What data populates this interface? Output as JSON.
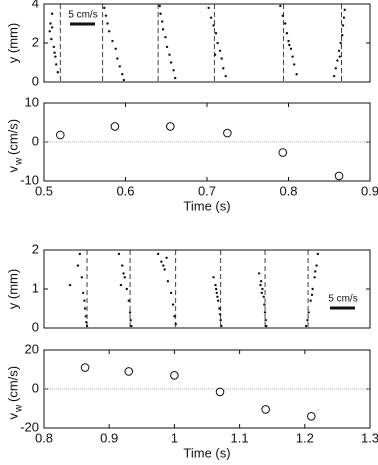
{
  "chart_data": [
    {
      "type": "profile",
      "ylabel": "y (mm)",
      "xlim": [
        0.5,
        0.9
      ],
      "ylim": [
        0,
        4
      ],
      "yticks": [
        0,
        2,
        4
      ],
      "scale_label": "5 cm/s",
      "color": "#111111",
      "series": [
        {
          "line": 0.52,
          "x": [
            0.51,
            0.508,
            0.507,
            0.509,
            0.512,
            0.514,
            0.515,
            0.517,
            0.51,
            0.513
          ],
          "y": [
            3.5,
            3.0,
            2.6,
            2.2,
            1.8,
            1.3,
            0.9,
            0.5,
            2.8,
            1.5
          ]
        },
        {
          "line": 0.572,
          "x": [
            0.574,
            0.576,
            0.578,
            0.58,
            0.584,
            0.588,
            0.59,
            0.593,
            0.596,
            0.598
          ],
          "y": [
            3.8,
            3.4,
            3.0,
            2.6,
            2.1,
            1.7,
            1.2,
            0.8,
            0.4,
            0.1
          ]
        },
        {
          "line": 0.64,
          "x": [
            0.642,
            0.643,
            0.645,
            0.646,
            0.649,
            0.651,
            0.654,
            0.656,
            0.659,
            0.661
          ],
          "y": [
            3.9,
            3.5,
            3.1,
            2.7,
            2.3,
            1.8,
            1.4,
            1.0,
            0.6,
            0.2
          ]
        },
        {
          "line": 0.709,
          "x": [
            0.702,
            0.705,
            0.708,
            0.711,
            0.713,
            0.716,
            0.718,
            0.72,
            0.723,
            0.71
          ],
          "y": [
            3.8,
            3.3,
            2.9,
            2.5,
            2.0,
            1.6,
            1.2,
            0.7,
            0.3,
            1.4
          ]
        },
        {
          "line": 0.794,
          "x": [
            0.79,
            0.793,
            0.796,
            0.798,
            0.8,
            0.803,
            0.805,
            0.807,
            0.81,
            0.801
          ],
          "y": [
            3.9,
            3.4,
            3.0,
            2.5,
            2.1,
            1.7,
            1.3,
            0.9,
            0.4,
            1.9
          ]
        },
        {
          "line": 0.865,
          "x": [
            0.869,
            0.868,
            0.867,
            0.866,
            0.864,
            0.862,
            0.86,
            0.858,
            0.856,
            0.863
          ],
          "y": [
            3.7,
            3.3,
            2.9,
            2.4,
            2.0,
            1.6,
            1.1,
            0.7,
            0.3,
            1.3
          ]
        }
      ]
    },
    {
      "type": "scatter",
      "ylabel": "v",
      "ylabel_sub": "w",
      "ylabel_unit": "(cm/s)",
      "xlabel": "Time (s)",
      "xlim": [
        0.5,
        0.9
      ],
      "xticks": [
        0.5,
        0.6,
        0.7,
        0.8,
        0.9
      ],
      "ylim": [
        -10,
        10
      ],
      "yticks": [
        -10,
        0,
        10
      ],
      "zero_line": true,
      "color": "#111111",
      "x": [
        0.52,
        0.587,
        0.655,
        0.725,
        0.793,
        0.862
      ],
      "values": [
        1.8,
        4,
        4,
        2.3,
        -2.7,
        -8.7
      ]
    },
    {
      "type": "profile",
      "ylabel": "y (mm)",
      "xlim": [
        0.8,
        1.3
      ],
      "ylim": [
        0,
        2
      ],
      "yticks": [
        0,
        1,
        2
      ],
      "scale_label": "5 cm/s",
      "color": "#111111",
      "series": [
        {
          "line": 0.866,
          "x": [
            0.84,
            0.852,
            0.858,
            0.86,
            0.862,
            0.863,
            0.864,
            0.865,
            0.866,
            0.855
          ],
          "y": [
            1.1,
            1.6,
            1.3,
            0.9,
            0.7,
            0.5,
            0.3,
            0.15,
            0.05,
            1.9
          ]
        },
        {
          "line": 0.932,
          "x": [
            0.915,
            0.92,
            0.924,
            0.927,
            0.93,
            0.932,
            0.933,
            0.934,
            0.922,
            0.918
          ],
          "y": [
            1.9,
            1.6,
            1.3,
            1.0,
            0.7,
            0.4,
            0.2,
            0.05,
            1.4,
            1.1
          ]
        },
        {
          "line": 1.002,
          "x": [
            0.975,
            0.98,
            0.985,
            0.99,
            0.995,
            0.998,
            1.0,
            1.002,
            0.988,
            0.983
          ],
          "y": [
            1.9,
            1.7,
            1.5,
            1.2,
            0.9,
            0.6,
            0.3,
            0.1,
            1.8,
            1.6
          ]
        },
        {
          "line": 1.071,
          "x": [
            1.06,
            1.063,
            1.065,
            1.067,
            1.069,
            1.07,
            1.071,
            1.072,
            1.066,
            1.064
          ],
          "y": [
            1.3,
            1.1,
            0.9,
            0.7,
            0.5,
            0.35,
            0.2,
            0.05,
            0.8,
            1.0
          ]
        },
        {
          "line": 1.139,
          "x": [
            1.13,
            1.133,
            1.135,
            1.137,
            1.138,
            1.139,
            1.14,
            1.141,
            1.134,
            1.132
          ],
          "y": [
            1.4,
            1.2,
            1.0,
            0.8,
            0.6,
            0.4,
            0.2,
            0.05,
            0.9,
            1.1
          ]
        },
        {
          "line": 1.205,
          "x": [
            1.22,
            1.218,
            1.215,
            1.212,
            1.209,
            1.206,
            1.204,
            1.202,
            1.216,
            1.211
          ],
          "y": [
            1.9,
            1.6,
            1.3,
            1.0,
            0.7,
            0.4,
            0.2,
            0.05,
            1.45,
            0.85
          ]
        }
      ]
    },
    {
      "type": "scatter",
      "ylabel": "v",
      "ylabel_sub": "w",
      "ylabel_unit": "(cm/s)",
      "xlabel": "Time (s)",
      "xlim": [
        0.8,
        1.3
      ],
      "xticks": [
        0.8,
        0.9,
        1,
        1.1,
        1.2,
        1.3
      ],
      "ylim": [
        -20,
        20
      ],
      "yticks": [
        -20,
        0,
        20
      ],
      "zero_line": true,
      "color": "#111111",
      "x": [
        0.863,
        0.93,
        1.0,
        1.07,
        1.14,
        1.21
      ],
      "values": [
        11,
        9,
        7,
        -1.5,
        -10.5,
        -14
      ]
    }
  ]
}
